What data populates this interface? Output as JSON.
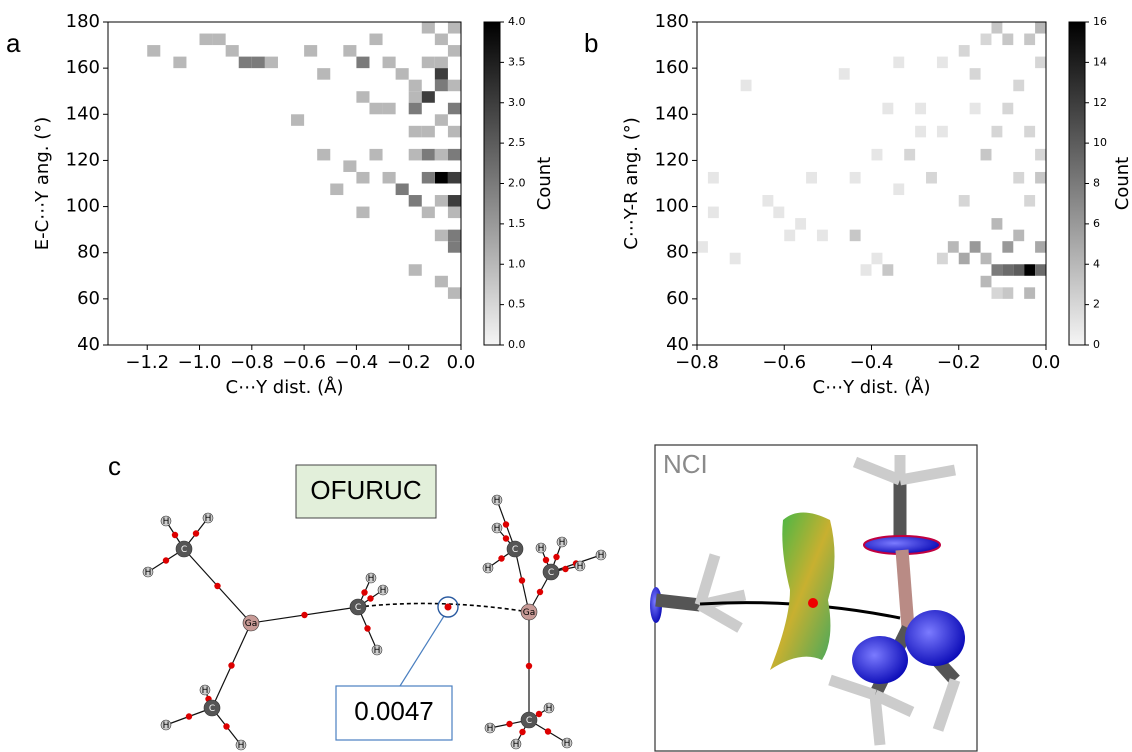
{
  "chart_data": [
    {
      "type": "heatmap",
      "xlabel": "C⋯Y dist. (Å)",
      "ylabel": "E-C⋯Y ang. (°)",
      "xlim": [
        -1.35,
        0
      ],
      "ylim": [
        40,
        180
      ],
      "xticks": [
        {
          "value": -1.2,
          "label": "−1.2"
        },
        {
          "value": -1.0,
          "label": "−1.0"
        },
        {
          "value": -0.8,
          "label": "−0.8"
        },
        {
          "value": -0.6,
          "label": "−0.6"
        },
        {
          "value": -0.4,
          "label": "−0.4"
        },
        {
          "value": -0.2,
          "label": "−0.2"
        },
        {
          "value": 0,
          "label": "0.0"
        }
      ],
      "yticks": [
        40,
        60,
        80,
        100,
        120,
        140,
        160,
        180
      ],
      "bin_size": [
        0.05,
        5
      ],
      "colormap": "Greys",
      "x": [
        -1.2,
        -1.1,
        -1.0,
        -0.95,
        -0.9,
        -0.85,
        -0.8,
        -0.75,
        -0.6,
        -0.55,
        -0.45,
        -0.4,
        -0.35,
        -0.3,
        -0.25,
        -0.2,
        -0.15,
        -0.1,
        -0.05,
        -0.05,
        -0.1,
        -0.15,
        -0.1,
        -0.65,
        -0.4,
        -0.35,
        -0.3,
        -0.2,
        -0.15,
        -0.2,
        -0.1,
        -0.05,
        -0.15,
        -0.2,
        -0.05,
        -0.55,
        -0.45,
        -0.35,
        -0.2,
        -0.15,
        -0.1,
        -0.05,
        -0.1,
        -0.05,
        -0.15,
        -0.5,
        -0.4,
        -0.3,
        -0.25,
        -0.2,
        -0.15,
        -0.1,
        -0.05,
        -0.4,
        -0.1,
        -0.05,
        -0.05,
        -0.2,
        -0.1,
        -0.05,
        -0.05,
        -0.1,
        -0.05
      ],
      "y": [
        165,
        160,
        170,
        170,
        165,
        160,
        160,
        160,
        165,
        155,
        165,
        160,
        170,
        160,
        155,
        150,
        175,
        170,
        175,
        165,
        160,
        160,
        155,
        135,
        145,
        140,
        140,
        145,
        145,
        140,
        135,
        130,
        130,
        130,
        140,
        120,
        115,
        120,
        120,
        120,
        120,
        120,
        110,
        110,
        110,
        105,
        110,
        110,
        105,
        100,
        95,
        100,
        95,
        95,
        85,
        80,
        85,
        70,
        65,
        60,
        100,
        150,
        150
      ],
      "values": [
        1,
        1,
        1,
        1,
        1,
        2,
        2,
        1,
        1,
        1,
        1,
        2,
        1,
        1,
        1,
        1,
        1,
        1,
        1,
        1,
        1,
        1,
        3,
        1,
        1,
        1,
        1,
        1,
        3,
        2,
        1,
        1,
        1,
        1,
        2,
        1,
        1,
        1,
        1,
        2,
        1,
        2,
        4,
        3,
        2,
        1,
        1,
        1,
        2,
        2,
        1,
        1,
        1,
        1,
        1,
        2,
        2,
        1,
        1,
        1,
        3,
        2,
        1
      ],
      "colorbar": {
        "label": "Count",
        "lim": [
          0,
          4
        ],
        "ticks": [
          {
            "value": 0,
            "label": "0.0"
          },
          {
            "value": 0.5,
            "label": "0.5"
          },
          {
            "value": 1,
            "label": "1.0"
          },
          {
            "value": 1.5,
            "label": "1.5"
          },
          {
            "value": 2,
            "label": "2.0"
          },
          {
            "value": 2.5,
            "label": "2.5"
          },
          {
            "value": 3,
            "label": "3.0"
          },
          {
            "value": 3.5,
            "label": "3.5"
          },
          {
            "value": 4,
            "label": "4.0"
          }
        ]
      }
    },
    {
      "type": "heatmap",
      "xlabel": "C⋯Y dist. (Å)",
      "ylabel": "C⋯Y-R ang. (°)",
      "xlim": [
        -0.8,
        0
      ],
      "ylim": [
        40,
        180
      ],
      "xticks": [
        {
          "value": -0.8,
          "label": "−0.8"
        },
        {
          "value": -0.6,
          "label": "−0.6"
        },
        {
          "value": -0.4,
          "label": "−0.4"
        },
        {
          "value": -0.2,
          "label": "−0.2"
        },
        {
          "value": 0,
          "label": "0.0"
        }
      ],
      "yticks": [
        40,
        60,
        80,
        100,
        120,
        140,
        160,
        180
      ],
      "bin_size": [
        0.025,
        5
      ],
      "colormap": "Greys",
      "x": [
        -0.775,
        -0.775,
        -0.8,
        -0.725,
        -0.7,
        -0.625,
        -0.6,
        -0.575,
        -0.525,
        -0.475,
        -0.45,
        -0.45,
        -0.425,
        -0.4,
        -0.375,
        -0.35,
        -0.35,
        -0.325,
        -0.3,
        -0.3,
        -0.275,
        -0.25,
        -0.25,
        -0.225,
        -0.2,
        -0.175,
        -0.15,
        -0.15,
        -0.125,
        -0.1,
        -0.1,
        -0.075,
        -0.05,
        -0.025,
        -0.025,
        -0.05,
        -0.1,
        -0.125,
        -0.075,
        -0.125,
        -0.2,
        -0.15,
        -0.125,
        -0.1,
        -0.075,
        -0.05,
        -0.025,
        -0.1,
        -0.15,
        -0.2,
        -0.025,
        -0.025,
        -0.075,
        -0.05,
        -0.175,
        -0.25,
        -0.375,
        -0.4,
        -0.55,
        -0.65,
        -0.025,
        -0.175,
        -0.125,
        -0.05
      ],
      "y": [
        110,
        95,
        80,
        75,
        150,
        95,
        85,
        90,
        85,
        155,
        110,
        85,
        70,
        75,
        70,
        105,
        160,
        120,
        130,
        140,
        110,
        75,
        160,
        80,
        75,
        80,
        75,
        65,
        70,
        70,
        80,
        70,
        70,
        70,
        80,
        60,
        60,
        60,
        85,
        90,
        100,
        120,
        130,
        140,
        150,
        170,
        175,
        170,
        170,
        165,
        110,
        120,
        110,
        130,
        140,
        130,
        140,
        120,
        110,
        100,
        160,
        155,
        175,
        100
      ],
      "values": [
        1,
        1,
        1,
        1,
        1,
        1,
        1,
        1,
        1,
        1,
        1,
        3,
        1,
        1,
        3,
        1,
        1,
        2,
        1,
        1,
        2,
        2,
        1,
        4,
        5,
        6,
        4,
        4,
        8,
        9,
        6,
        10,
        16,
        9,
        5,
        4,
        3,
        2,
        4,
        4,
        2,
        3,
        2,
        2,
        2,
        3,
        4,
        3,
        2,
        2,
        3,
        2,
        2,
        2,
        1,
        1,
        1,
        1,
        1,
        1,
        2,
        2,
        3,
        2
      ],
      "colorbar": {
        "label": "Count",
        "lim": [
          0,
          16
        ],
        "ticks": [
          0,
          2,
          4,
          6,
          8,
          10,
          12,
          14,
          16
        ]
      }
    }
  ],
  "panel_labels": [
    "a",
    "b",
    "c"
  ],
  "molecule": {
    "title": "OFURUC",
    "annotation": "0.0047",
    "atoms": [
      "Ga",
      "Ga",
      "C",
      "C",
      "C",
      "C",
      "C",
      "C",
      "H",
      "H",
      "H",
      "H",
      "H",
      "H",
      "H",
      "H",
      "H",
      "H",
      "H",
      "H",
      "H",
      "H",
      "H",
      "H",
      "H",
      "H",
      "H",
      "H"
    ]
  },
  "nci": {
    "title": "NCI"
  }
}
